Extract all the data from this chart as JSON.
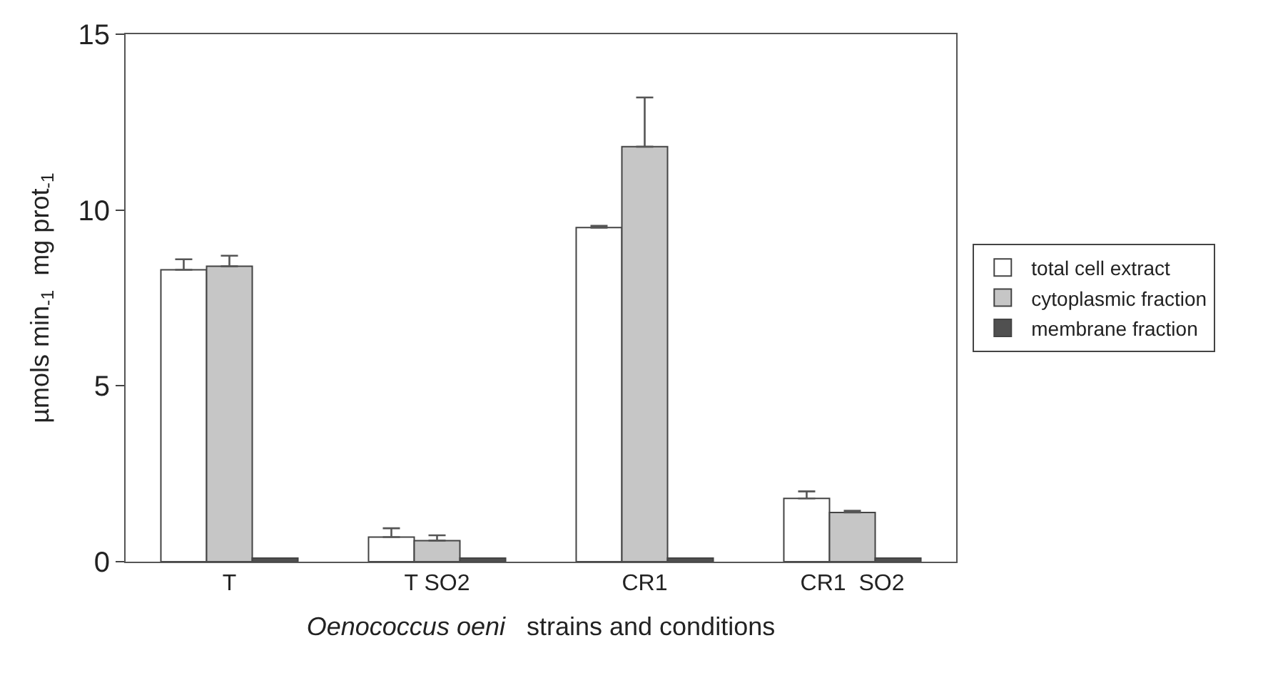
{
  "chart_data": {
    "type": "bar",
    "xlabel": "Oenococcus oeni   strains and conditions",
    "ylabel": "µmols min$_{-1}$  mg prot$_{-1}$",
    "categories": [
      "T",
      "T SO2",
      "CR1",
      "CR1  SO2"
    ],
    "series": [
      {
        "name": "total cell extract",
        "color": "#ffffff",
        "values": [
          8.3,
          0.7,
          9.5,
          1.8
        ],
        "errors": [
          [
            8.3,
            8.6
          ],
          [
            0.7,
            0.95
          ],
          [
            9.5,
            9.55
          ],
          [
            1.8,
            2.0
          ]
        ]
      },
      {
        "name": "cytoplasmic fraction",
        "color": "#c6c6c6",
        "values": [
          8.4,
          0.6,
          11.8,
          1.4
        ],
        "errors": [
          [
            8.4,
            8.7
          ],
          [
            0.6,
            0.75
          ],
          [
            11.8,
            13.2
          ],
          [
            1.4,
            1.45
          ]
        ]
      },
      {
        "name": "membrane fraction",
        "color": "#505050",
        "values": [
          0.1,
          0.1,
          0.1,
          0.1
        ]
      }
    ],
    "ylim": [
      0,
      15
    ],
    "yticks": [
      0,
      5,
      10,
      15
    ],
    "legend": "right"
  }
}
